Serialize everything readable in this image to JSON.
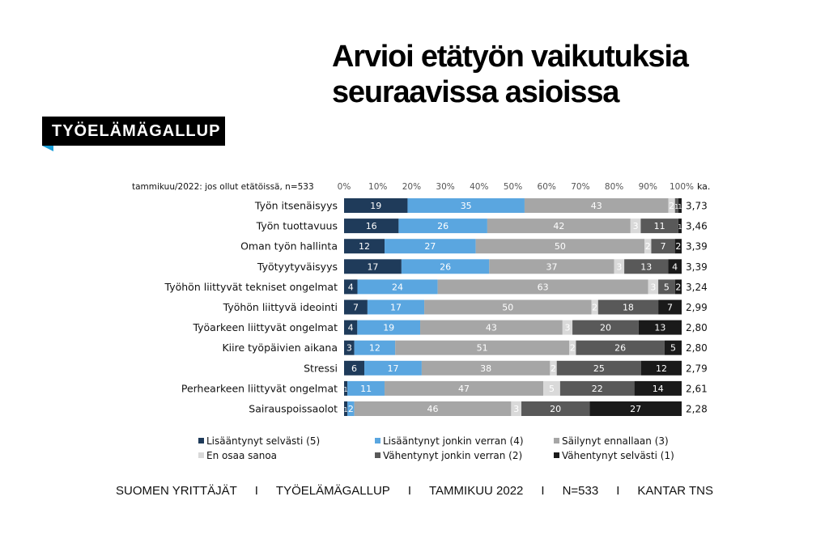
{
  "title_lines": [
    "Arvioi etätyön vaikutuksia",
    "seuraavissa asioissa"
  ],
  "logo_text": "TYÖELÄMÄGALLUP",
  "footer_items": [
    "SUOMEN YRITTÄJÄT",
    "TYÖELÄMÄGALLUP",
    "TAMMIKUU 2022",
    "N=533",
    "KANTAR TNS"
  ],
  "footer_separator": "I",
  "chart_data": {
    "type": "bar",
    "orientation": "horizontal-stacked-100",
    "subtitle": "tammikuu/2022: jos ollut etätöissä, n=533",
    "avg_header": "ka.",
    "x_ticks": [
      "0%",
      "10%",
      "20%",
      "30%",
      "40%",
      "50%",
      "60%",
      "70%",
      "80%",
      "90%",
      "100%"
    ],
    "xlim": [
      0,
      100
    ],
    "categories": [
      "Työn itsenäisyys",
      "Työn tuottavuus",
      "Oman työn hallinta",
      "Työtyytyväisyys",
      "Työhön liittyvät tekniset ongelmat",
      "Työhön liittyvä ideointi",
      "Työarkeen liittyvät ongelmat",
      "Kiire työpäivien aikana",
      "Stressi",
      "Perhearkeen liittyvät ongelmat",
      "Sairauspoissaolot"
    ],
    "averages": [
      "3,73",
      "3,46",
      "3,39",
      "3,39",
      "3,24",
      "2,99",
      "2,80",
      "2,80",
      "2,79",
      "2,61",
      "2,28"
    ],
    "series": [
      {
        "name": "Lisääntynyt selvästi (5)",
        "color": "#1f3b5a",
        "label_color": "#ffffff",
        "values": [
          19,
          16,
          12,
          17,
          4,
          7,
          4,
          3,
          6,
          1,
          1
        ]
      },
      {
        "name": "Lisääntynyt jonkin verran (4)",
        "color": "#5aa6e0",
        "label_color": "#ffffff",
        "values": [
          35,
          26,
          27,
          26,
          24,
          17,
          19,
          12,
          17,
          11,
          2
        ]
      },
      {
        "name": "Säilynyt ennallaan (3)",
        "color": "#a6a6a6",
        "label_color": "#ffffff",
        "values": [
          43,
          42,
          50,
          37,
          63,
          50,
          43,
          51,
          38,
          47,
          46
        ]
      },
      {
        "name": "En osaa sanoa",
        "color": "#d9d9d9",
        "label_color": "#ffffff",
        "values": [
          2,
          3,
          2,
          3,
          3,
          2,
          3,
          2,
          2,
          5,
          3
        ]
      },
      {
        "name": "Vähentynyt jonkin verran (2)",
        "color": "#595959",
        "label_color": "#ffffff",
        "values": [
          1,
          11,
          7,
          13,
          5,
          18,
          20,
          26,
          25,
          22,
          20
        ]
      },
      {
        "name": "Vähentynyt selvästi (1)",
        "color": "#1a1a1a",
        "label_color": "#ffffff",
        "values": [
          1,
          1,
          2,
          4,
          2,
          7,
          13,
          5,
          12,
          14,
          27
        ]
      }
    ]
  }
}
